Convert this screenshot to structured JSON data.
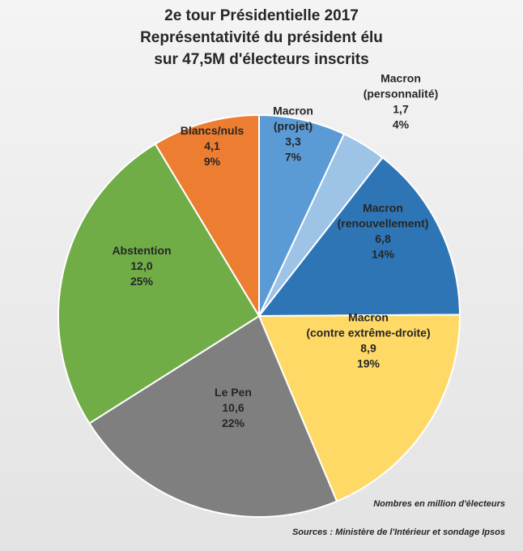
{
  "title": {
    "line1": "2e tour Présidentielle 2017",
    "line2": "Représentativité du président élu",
    "line3": "sur 47,5M d'électeurs inscrits"
  },
  "notes": {
    "unit": "Nombres en million d'électeurs",
    "sources": "Sources : Ministère de l'Intérieur et sondage Ipsos"
  },
  "chart_data": {
    "type": "pie",
    "title": "2e tour Présidentielle 2017 — Représentativité du président élu sur 47,5M d'électeurs inscrits",
    "unit": "millions d'électeurs",
    "start": "top, clockwise",
    "slices": [
      {
        "name": "Macron (projet)",
        "label_lines": [
          "Macron",
          "(projet)"
        ],
        "value": 3.3,
        "value_label": "3,3",
        "percent_label": "7%",
        "color": "#5b9bd5"
      },
      {
        "name": "Macron (personnalité)",
        "label_lines": [
          "Macron",
          "(personnalité)"
        ],
        "value": 1.7,
        "value_label": "1,7",
        "percent_label": "4%",
        "color": "#9dc3e6"
      },
      {
        "name": "Macron (renouvellement)",
        "label_lines": [
          "Macron",
          "(renouvellement)"
        ],
        "value": 6.8,
        "value_label": "6,8",
        "percent_label": "14%",
        "color": "#2e75b6"
      },
      {
        "name": "Macron (contre extrême-droite)",
        "label_lines": [
          "Macron",
          "(contre extrême-droite)"
        ],
        "value": 8.9,
        "value_label": "8,9",
        "percent_label": "19%",
        "color": "#ffd966"
      },
      {
        "name": "Le Pen",
        "label_lines": [
          "Le Pen"
        ],
        "value": 10.6,
        "value_label": "10,6",
        "percent_label": "22%",
        "color": "#7f7f7f"
      },
      {
        "name": "Abstention",
        "label_lines": [
          "Abstention"
        ],
        "value": 12.0,
        "value_label": "12,0",
        "percent_label": "25%",
        "color": "#70ad47"
      },
      {
        "name": "Blancs/nuls",
        "label_lines": [
          "Blancs/nuls"
        ],
        "value": 4.1,
        "value_label": "4,1",
        "percent_label": "9%",
        "color": "#ed7d31"
      }
    ]
  }
}
